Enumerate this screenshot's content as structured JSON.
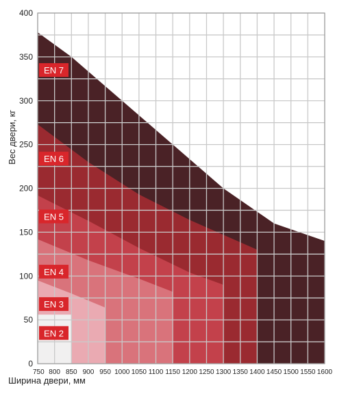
{
  "chart_data": {
    "type": "area",
    "xlabel": "Ширина двери, мм",
    "ylabel": "Вес двери, кг",
    "xlim": [
      750,
      1600
    ],
    "ylim": [
      0,
      400
    ],
    "x_ticks": [
      750,
      800,
      850,
      900,
      950,
      1000,
      1050,
      1100,
      1150,
      1200,
      1250,
      1300,
      1350,
      1400,
      1450,
      1500,
      1550,
      1600
    ],
    "y_ticks": [
      0,
      50,
      100,
      150,
      200,
      250,
      300,
      350,
      400
    ],
    "grid": true,
    "series": [
      {
        "name": "EN 7",
        "color": "#4a2226",
        "label_y": 335,
        "x_end": 1600,
        "points": [
          [
            750,
            378
          ],
          [
            850,
            350
          ],
          [
            1000,
            300
          ],
          [
            1150,
            250
          ],
          [
            1300,
            200
          ],
          [
            1450,
            160
          ],
          [
            1600,
            140
          ]
        ]
      },
      {
        "name": "EN 6",
        "color": "#9a2a30",
        "label_y": 234,
        "x_end": 1400,
        "points": [
          [
            750,
            273
          ],
          [
            900,
            230
          ],
          [
            1050,
            193
          ],
          [
            1200,
            164
          ],
          [
            1400,
            130
          ]
        ]
      },
      {
        "name": "EN 5",
        "color": "#c3414b",
        "label_y": 168,
        "x_end": 1300,
        "points": [
          [
            750,
            192
          ],
          [
            900,
            163
          ],
          [
            1050,
            132
          ],
          [
            1200,
            104
          ],
          [
            1300,
            90
          ]
        ]
      },
      {
        "name": "EN 4",
        "color": "#d9737b",
        "label_y": 105,
        "x_end": 1150,
        "points": [
          [
            750,
            142
          ],
          [
            900,
            118
          ],
          [
            1050,
            97
          ],
          [
            1150,
            82
          ]
        ]
      },
      {
        "name": "EN 3",
        "color": "#eaaab2",
        "label_y": 68,
        "x_end": 950,
        "points": [
          [
            750,
            95
          ],
          [
            850,
            80
          ],
          [
            950,
            64
          ]
        ]
      },
      {
        "name": "EN 2",
        "color": "#f1f0f0",
        "label_y": 35,
        "x_end": 850,
        "points": [
          [
            750,
            56
          ],
          [
            850,
            56
          ]
        ]
      }
    ]
  }
}
